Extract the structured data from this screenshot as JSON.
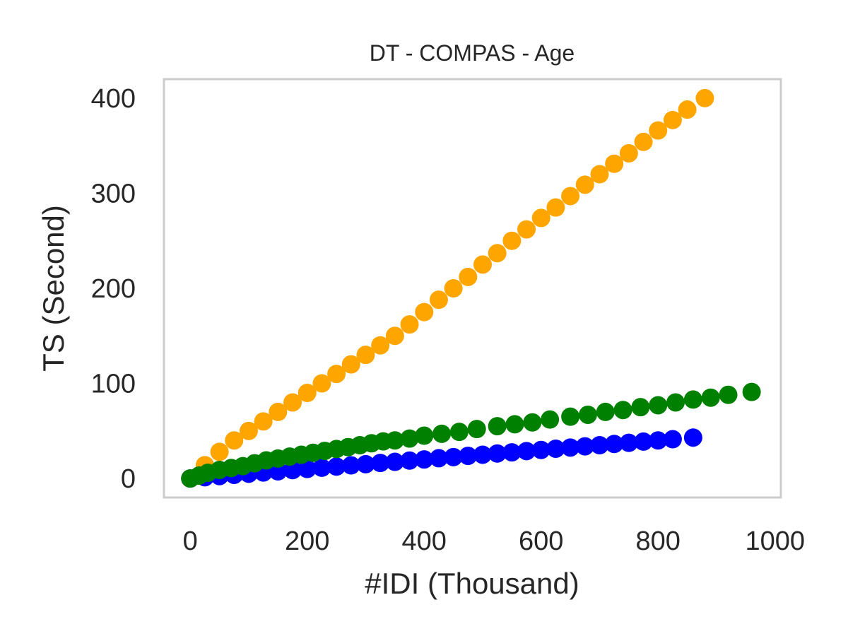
{
  "chart_data": {
    "type": "scatter",
    "title": "DT - COMPAS - Age",
    "xlabel": "#IDI (Thousand)",
    "ylabel": "TS (Second)",
    "xlim": [
      -45,
      1010
    ],
    "ylim": [
      -20,
      420
    ],
    "x_ticks": [
      "0",
      "200",
      "400",
      "600",
      "800",
      "1000"
    ],
    "y_ticks": [
      "0",
      "100",
      "200",
      "300",
      "400"
    ],
    "grid": false,
    "legend": "none",
    "series": [
      {
        "color": "#ffa500",
        "x": [
          0,
          25,
          50,
          75,
          100,
          125,
          150,
          175,
          200,
          225,
          250,
          275,
          300,
          325,
          350,
          375,
          400,
          425,
          450,
          475,
          500,
          525,
          550,
          575,
          600,
          625,
          650,
          675,
          700,
          725,
          750,
          775,
          800,
          825,
          850,
          880
        ],
        "y": [
          0,
          14,
          28,
          40,
          50,
          60,
          70,
          80,
          90,
          100,
          110,
          120,
          130,
          140,
          150,
          162,
          175,
          188,
          200,
          212,
          225,
          237,
          250,
          262,
          274,
          285,
          297,
          309,
          320,
          331,
          342,
          354,
          366,
          377,
          388,
          400
        ]
      },
      {
        "color": "#0000ff",
        "x": [
          0,
          25,
          50,
          75,
          100,
          125,
          150,
          175,
          200,
          225,
          250,
          275,
          300,
          325,
          350,
          375,
          400,
          425,
          450,
          475,
          500,
          525,
          550,
          575,
          600,
          625,
          650,
          675,
          700,
          725,
          750,
          775,
          800,
          825,
          860
        ],
        "y": [
          0,
          1.3,
          2.5,
          3.8,
          5,
          6.3,
          7.5,
          8.8,
          10,
          11.3,
          12.5,
          13.8,
          15,
          16.3,
          17.5,
          18.8,
          20,
          21.3,
          22.5,
          23.8,
          25,
          26.3,
          27.5,
          28.8,
          30,
          31.3,
          32.5,
          33.8,
          35,
          36.3,
          37.5,
          38.8,
          40,
          41.3,
          43
        ]
      },
      {
        "color": "#008000",
        "x": [
          0,
          15,
          30,
          50,
          70,
          90,
          110,
          130,
          150,
          170,
          190,
          210,
          230,
          250,
          270,
          290,
          310,
          330,
          350,
          375,
          400,
          430,
          460,
          490,
          525,
          555,
          585,
          615,
          650,
          680,
          710,
          740,
          770,
          800,
          830,
          860,
          890,
          920,
          960
        ],
        "y": [
          0,
          3,
          6,
          9,
          11,
          13,
          16,
          19,
          21,
          23,
          25,
          27,
          29,
          31,
          33,
          35,
          37,
          39,
          40,
          42,
          45,
          47,
          49,
          52,
          55,
          57,
          59,
          62,
          65,
          67,
          70,
          72,
          75,
          77,
          80,
          83,
          85,
          88,
          91
        ]
      }
    ]
  }
}
